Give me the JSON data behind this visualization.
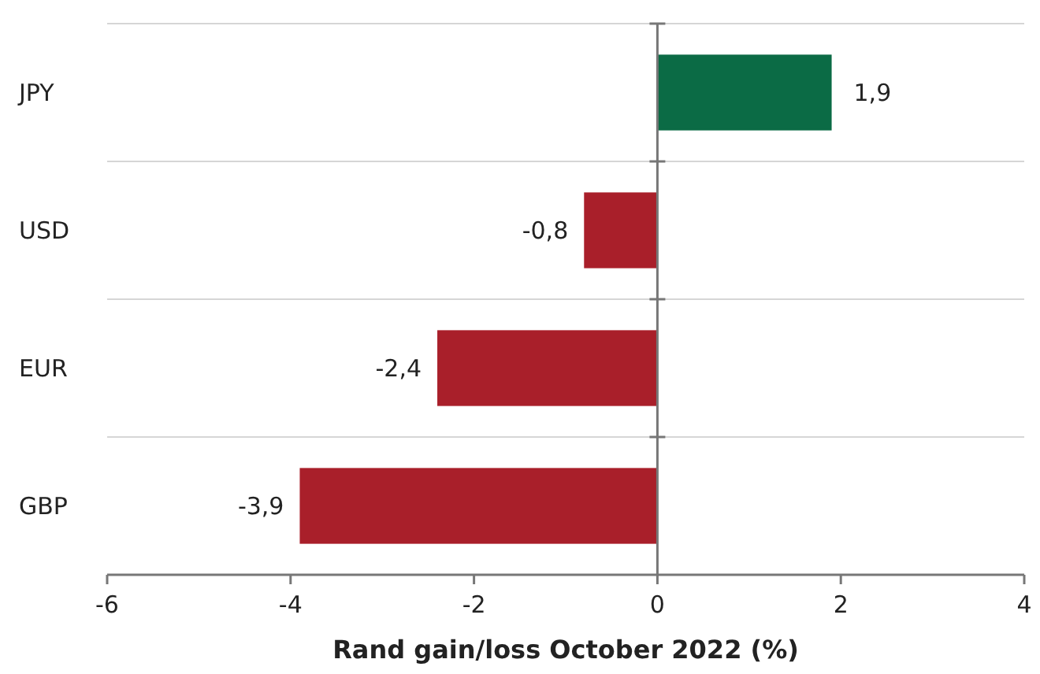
{
  "chart_data": {
    "type": "bar",
    "orientation": "horizontal",
    "xlabel": "Rand gain/loss October 2022 (%)",
    "categories": [
      "JPY",
      "USD",
      "EUR",
      "GBP"
    ],
    "values": [
      1.9,
      -0.8,
      -2.4,
      -3.9
    ],
    "value_labels": [
      "1,9",
      "-0,8",
      "-2,4",
      "-3,9"
    ],
    "colors": [
      "#0b6b45",
      "#a91f2a",
      "#a91f2a",
      "#a91f2a"
    ],
    "xlim": [
      -6,
      4
    ],
    "xticks": [
      -6,
      -4,
      -2,
      0,
      2,
      4
    ],
    "grid": "y"
  }
}
